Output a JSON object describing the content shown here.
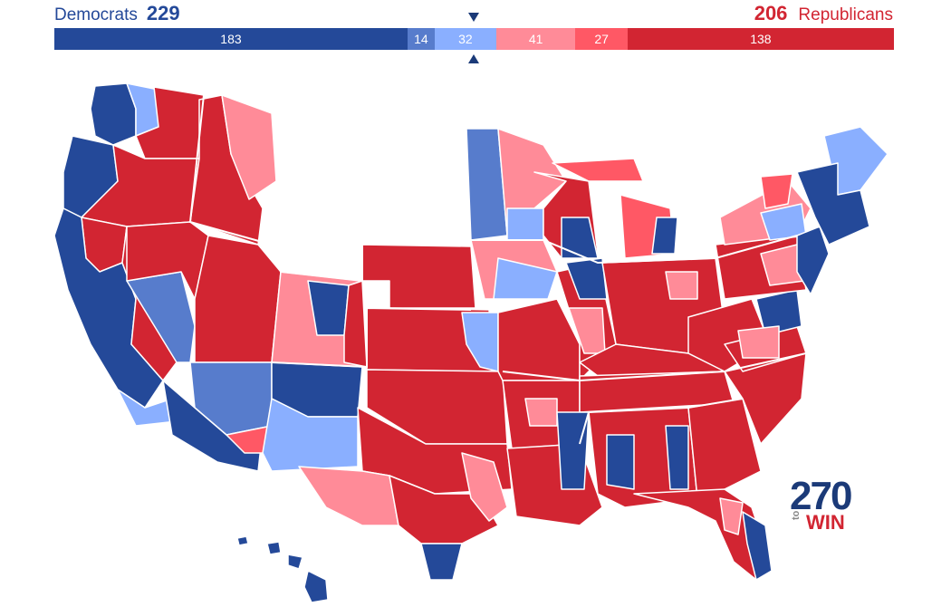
{
  "header": {
    "dem_label": "Democrats",
    "dem_total": "229",
    "rep_total": "206",
    "rep_label": "Republicans"
  },
  "bar": [
    {
      "key": "safe-d",
      "value": 183,
      "label": "183",
      "color": "#244999"
    },
    {
      "key": "likely-d",
      "value": 14,
      "label": "14",
      "color": "#577ccc"
    },
    {
      "key": "leans-d",
      "value": 32,
      "label": "32",
      "color": "#8aafff"
    },
    {
      "key": "leans-r",
      "value": 41,
      "label": "41",
      "color": "#ff8b98"
    },
    {
      "key": "likely-r",
      "value": 27,
      "label": "27",
      "color": "#ff5865"
    },
    {
      "key": "safe-r",
      "value": 138,
      "label": "138",
      "color": "#d22532"
    }
  ],
  "colors": {
    "safe_d": "#244999",
    "likely_d": "#577ccc",
    "leans_d": "#8aafff",
    "leans_r": "#ff8b98",
    "likely_r": "#ff5865",
    "safe_r": "#d22532"
  },
  "logo": {
    "big": "270",
    "small_to": "to",
    "small_win": "WIN"
  }
}
